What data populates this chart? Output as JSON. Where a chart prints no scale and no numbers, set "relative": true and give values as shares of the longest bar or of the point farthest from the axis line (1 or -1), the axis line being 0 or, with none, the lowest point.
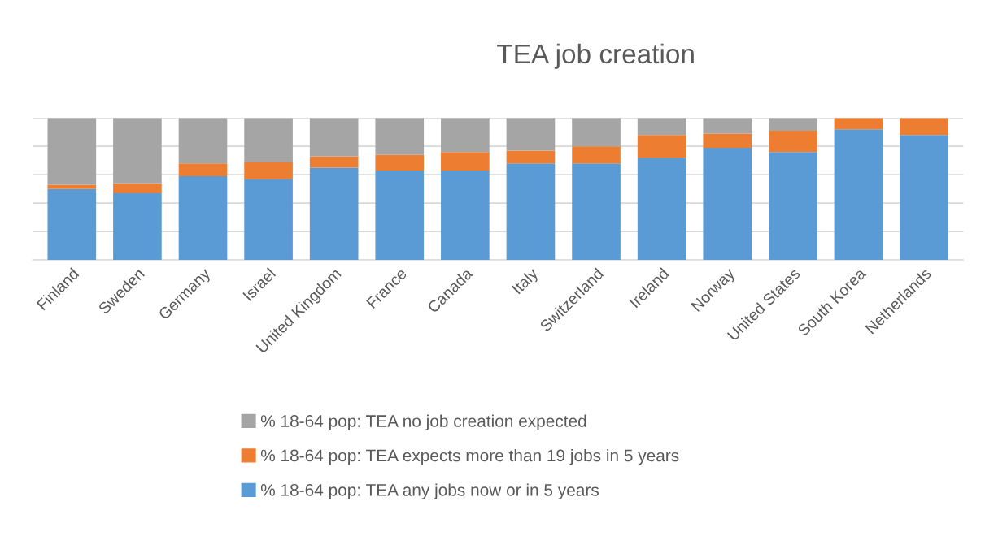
{
  "chart_data": {
    "type": "bar",
    "title": "TEA job creation",
    "categories": [
      "Finland",
      "Sweden",
      "Germany",
      "Israel",
      "United Kingdom",
      "France",
      "Canada",
      "Italy",
      "Switzerland",
      "Ireland",
      "Norway",
      "United States",
      "South Korea",
      "Netherlands"
    ],
    "stacked": true,
    "relative": true,
    "grid": "y",
    "legend": "bottom",
    "series": [
      {
        "name": "% 18-64 pop: TEA any jobs now or in 5 years",
        "color": "#5b9bd5",
        "values": [
          0.5,
          0.47,
          0.59,
          0.57,
          0.65,
          0.63,
          0.63,
          0.68,
          0.68,
          0.72,
          0.79,
          0.76,
          0.92,
          0.88
        ]
      },
      {
        "name": "% 18-64 pop: TEA expects more than 19 jobs in 5 years",
        "color": "#ed7d31",
        "values": [
          0.03,
          0.07,
          0.09,
          0.12,
          0.08,
          0.11,
          0.13,
          0.09,
          0.12,
          0.16,
          0.1,
          0.15,
          0.08,
          0.12
        ]
      },
      {
        "name": "% 18-64 pop: TEA no job creation expected",
        "color": "#a5a5a5",
        "values": [
          0.47,
          0.46,
          0.32,
          0.31,
          0.27,
          0.26,
          0.24,
          0.23,
          0.2,
          0.12,
          0.11,
          0.09,
          0.0,
          0.0
        ]
      }
    ]
  }
}
